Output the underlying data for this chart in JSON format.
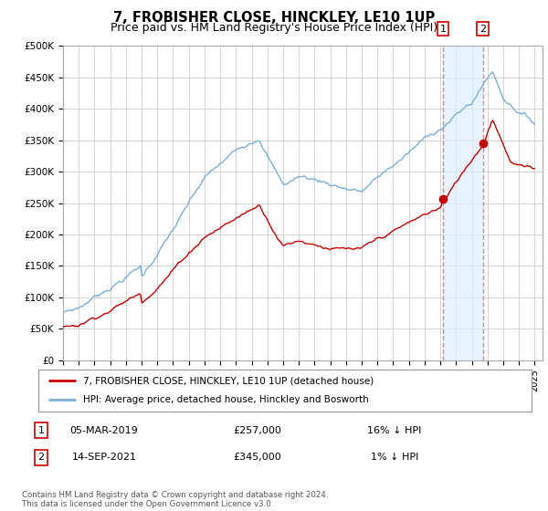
{
  "title": "7, FROBISHER CLOSE, HINCKLEY, LE10 1UP",
  "subtitle": "Price paid vs. HM Land Registry's House Price Index (HPI)",
  "ylabel_ticks": [
    "£0",
    "£50K",
    "£100K",
    "£150K",
    "£200K",
    "£250K",
    "£300K",
    "£350K",
    "£400K",
    "£450K",
    "£500K"
  ],
  "ytick_values": [
    0,
    50000,
    100000,
    150000,
    200000,
    250000,
    300000,
    350000,
    400000,
    450000,
    500000
  ],
  "ylim": [
    0,
    500000
  ],
  "xlim_start": 1995.0,
  "xlim_end": 2025.5,
  "xtick_years": [
    1995,
    1996,
    1997,
    1998,
    1999,
    2000,
    2001,
    2002,
    2003,
    2004,
    2005,
    2006,
    2007,
    2008,
    2009,
    2010,
    2011,
    2012,
    2013,
    2014,
    2015,
    2016,
    2017,
    2018,
    2019,
    2020,
    2021,
    2022,
    2023,
    2024,
    2025
  ],
  "hpi_color": "#7ab0d8",
  "price_color": "#cc0000",
  "marker_color": "#cc0000",
  "sale1_x": 2019.17,
  "sale1_y": 257000,
  "sale1_label": "1",
  "sale2_x": 2021.71,
  "sale2_y": 345000,
  "sale2_label": "2",
  "highlight_color": "#ddeeff",
  "vline_color": "#dd6666",
  "legend_line1": "7, FROBISHER CLOSE, HINCKLEY, LE10 1UP (detached house)",
  "legend_line2": "HPI: Average price, detached house, Hinckley and Bosworth",
  "table_row1_num": "1",
  "table_row1_date": "05-MAR-2019",
  "table_row1_price": "£257,000",
  "table_row1_hpi": "16% ↓ HPI",
  "table_row2_num": "2",
  "table_row2_date": "14-SEP-2021",
  "table_row2_price": "£345,000",
  "table_row2_hpi": "1% ↓ HPI",
  "footnote": "Contains HM Land Registry data © Crown copyright and database right 2024.\nThis data is licensed under the Open Government Licence v3.0.",
  "background_color": "#ffffff",
  "grid_color": "#cccccc",
  "title_fontsize": 10.5,
  "subtitle_fontsize": 9
}
